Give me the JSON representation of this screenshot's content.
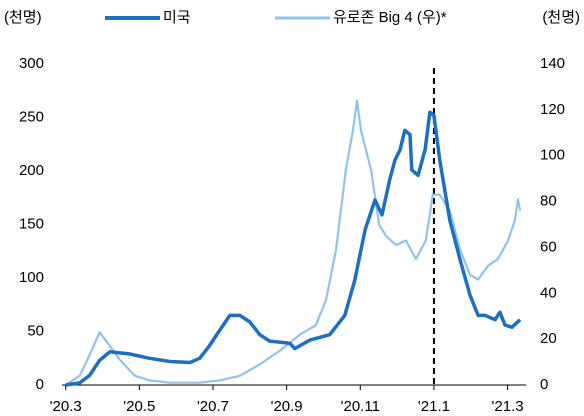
{
  "chart_data": {
    "type": "line",
    "y_label": "(천명)",
    "y2_label": "(천명)",
    "xlim": [
      -0.1,
      12.5
    ],
    "xticks": [
      {
        "value": 0,
        "label": "'20.3"
      },
      {
        "value": 2,
        "label": "'20.5"
      },
      {
        "value": 4,
        "label": "'20.7"
      },
      {
        "value": 6,
        "label": "'20.9"
      },
      {
        "value": 8,
        "label": "'20.11"
      },
      {
        "value": 10,
        "label": "'21.1"
      },
      {
        "value": 12,
        "label": "'21.3"
      }
    ],
    "ylim": [
      0,
      300
    ],
    "yticks": [
      0,
      50,
      100,
      150,
      200,
      250,
      300
    ],
    "y2lim": [
      0,
      140
    ],
    "y2ticks": [
      0,
      20,
      40,
      60,
      80,
      100,
      120,
      140
    ],
    "vline": 10,
    "series": [
      {
        "name": "미국",
        "color": "#1f6fbf",
        "axis": "y",
        "x": [
          0,
          0.38,
          0.65,
          0.92,
          1.2,
          1.74,
          2.28,
          2.83,
          3.37,
          3.64,
          3.91,
          4.18,
          4.46,
          4.73,
          5,
          5.27,
          5.54,
          6.09,
          6.22,
          6.63,
          7.17,
          7.58,
          7.85,
          8.13,
          8.4,
          8.59,
          8.8,
          8.94,
          9.08,
          9.21,
          9.35,
          9.4,
          9.57,
          9.76,
          9.89,
          10,
          10.16,
          10.43,
          10.71,
          10.98,
          11.2,
          11.39,
          11.66,
          11.79,
          11.93,
          12.12,
          12.34
        ],
        "values": [
          0,
          2,
          9,
          23,
          31,
          29,
          25,
          22,
          21,
          25,
          37,
          51,
          65,
          65,
          59,
          47,
          41,
          39,
          34,
          42,
          47,
          65,
          98,
          145,
          173,
          159,
          192,
          210,
          220,
          238,
          234,
          201,
          196,
          220,
          255,
          252,
          210,
          154,
          117,
          84,
          65,
          65,
          61,
          68,
          56,
          54,
          61
        ]
      },
      {
        "name": "유로존 Big 4 (우)*",
        "color": "#92c2ec",
        "axis": "y2",
        "x": [
          0,
          0.38,
          0.65,
          0.92,
          1.2,
          1.47,
          1.88,
          2.28,
          2.83,
          3.64,
          4.18,
          4.73,
          5.27,
          5.82,
          6.36,
          6.79,
          7.07,
          7.34,
          7.61,
          7.8,
          7.91,
          8.02,
          8.29,
          8.51,
          8.7,
          8.97,
          9.24,
          9.51,
          9.78,
          9.97,
          10.16,
          10.43,
          10.71,
          10.98,
          11.2,
          11.47,
          11.74,
          12.01,
          12.2,
          12.28,
          12.34
        ],
        "values": [
          0,
          4,
          13,
          23,
          17,
          11,
          4,
          2,
          1,
          1,
          2,
          4,
          9,
          15,
          22,
          26,
          37,
          59,
          94,
          111,
          124,
          111,
          94,
          70,
          65,
          61,
          63,
          55,
          63,
          83,
          83,
          76,
          59,
          48,
          46,
          52,
          55,
          63,
          72,
          81,
          76
        ]
      }
    ]
  }
}
